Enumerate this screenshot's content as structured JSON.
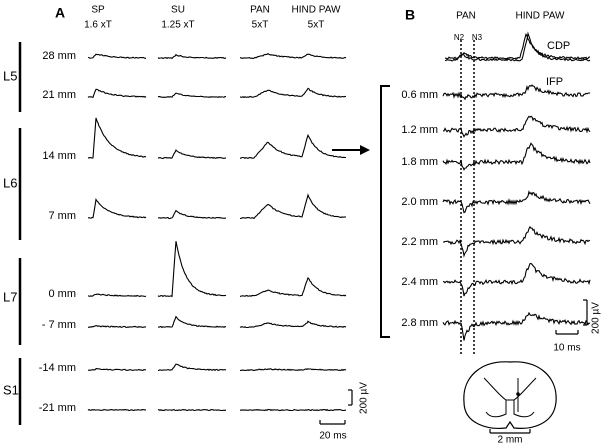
{
  "panel_a": {
    "label": "A",
    "columns": [
      {
        "name": "SP",
        "stim": "1.6 xT"
      },
      {
        "name": "SU",
        "stim": "1.25 xT"
      },
      {
        "name": "PAN",
        "stim": "5xT"
      },
      {
        "name": "HIND PAW",
        "stim": "5xT"
      }
    ],
    "segments": [
      "L5",
      "L6",
      "L7",
      "S1"
    ],
    "rows": [
      "28 mm",
      "21 mm",
      "14 mm",
      "7 mm",
      "0 mm",
      "- 7 mm",
      "-14 mm",
      "-21 mm"
    ],
    "scale_amplitude": "200 µV",
    "scale_time": "20 ms"
  },
  "panel_b": {
    "label": "B",
    "pan": "PAN",
    "hind_paw": "HIND PAW",
    "n2": "N2",
    "n3": "N3",
    "cdp": "CDP",
    "ifp": "IFP",
    "rows": [
      "0.6 mm",
      "1.2 mm",
      "1.8 mm",
      "2.0 mm",
      "2.2 mm",
      "2.4 mm",
      "2.8 mm"
    ],
    "scale_amplitude": "200 µV",
    "scale_time": "10 ms",
    "cord_scale": "2 mm"
  }
}
